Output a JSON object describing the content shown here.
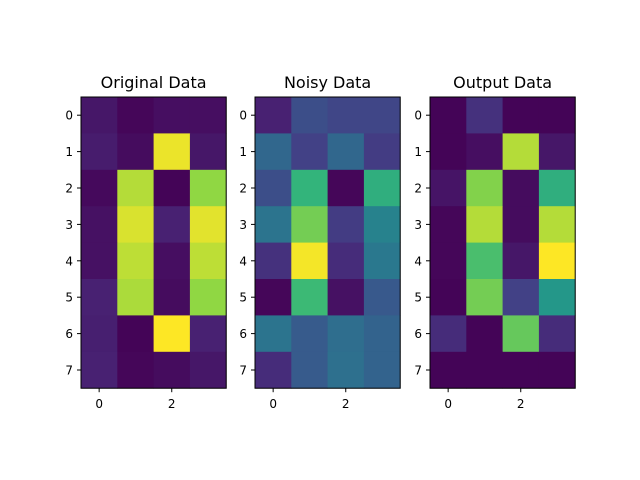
{
  "chart_data": [
    {
      "type": "heatmap",
      "title": "Original Data",
      "colormap": "viridis",
      "vmin": 0,
      "vmax": 1,
      "x_ticks": [
        0,
        2
      ],
      "y_ticks": [
        0,
        1,
        2,
        3,
        4,
        5,
        6,
        7
      ],
      "values": [
        [
          0.08,
          0.02,
          0.05,
          0.05
        ],
        [
          0.1,
          0.04,
          0.98,
          0.08
        ],
        [
          0.03,
          0.92,
          0.01,
          0.88
        ],
        [
          0.06,
          0.96,
          0.12,
          0.97
        ],
        [
          0.06,
          0.93,
          0.05,
          0.93
        ],
        [
          0.12,
          0.91,
          0.04,
          0.88
        ],
        [
          0.11,
          0.01,
          1.0,
          0.12
        ],
        [
          0.12,
          0.02,
          0.04,
          0.08
        ]
      ]
    },
    {
      "type": "heatmap",
      "title": "Noisy Data",
      "colormap": "viridis",
      "vmin": 0,
      "vmax": 1,
      "x_ticks": [
        0,
        2
      ],
      "y_ticks": [
        0,
        1,
        2,
        3,
        4,
        5,
        6,
        7
      ],
      "values": [
        [
          0.12,
          0.3,
          0.26,
          0.26
        ],
        [
          0.42,
          0.24,
          0.42,
          0.22
        ],
        [
          0.3,
          0.74,
          0.02,
          0.72
        ],
        [
          0.48,
          0.84,
          0.22,
          0.55
        ],
        [
          0.18,
          0.99,
          0.16,
          0.5
        ],
        [
          0.02,
          0.76,
          0.06,
          0.35
        ],
        [
          0.48,
          0.36,
          0.45,
          0.4
        ],
        [
          0.16,
          0.36,
          0.46,
          0.4
        ]
      ]
    },
    {
      "type": "heatmap",
      "title": "Output Data",
      "colormap": "viridis",
      "vmin": 0,
      "vmax": 1,
      "x_ticks": [
        0,
        2
      ],
      "y_ticks": [
        0,
        1,
        2,
        3,
        4,
        5,
        6,
        7
      ],
      "values": [
        [
          0.01,
          0.18,
          0.01,
          0.01
        ],
        [
          0.01,
          0.05,
          0.92,
          0.08
        ],
        [
          0.07,
          0.86,
          0.04,
          0.72
        ],
        [
          0.02,
          0.92,
          0.04,
          0.92
        ],
        [
          0.02,
          0.78,
          0.08,
          1.0
        ],
        [
          0.01,
          0.84,
          0.24,
          0.65
        ],
        [
          0.16,
          0.01,
          0.82,
          0.16
        ],
        [
          0.01,
          0.01,
          0.01,
          0.01
        ]
      ]
    }
  ]
}
